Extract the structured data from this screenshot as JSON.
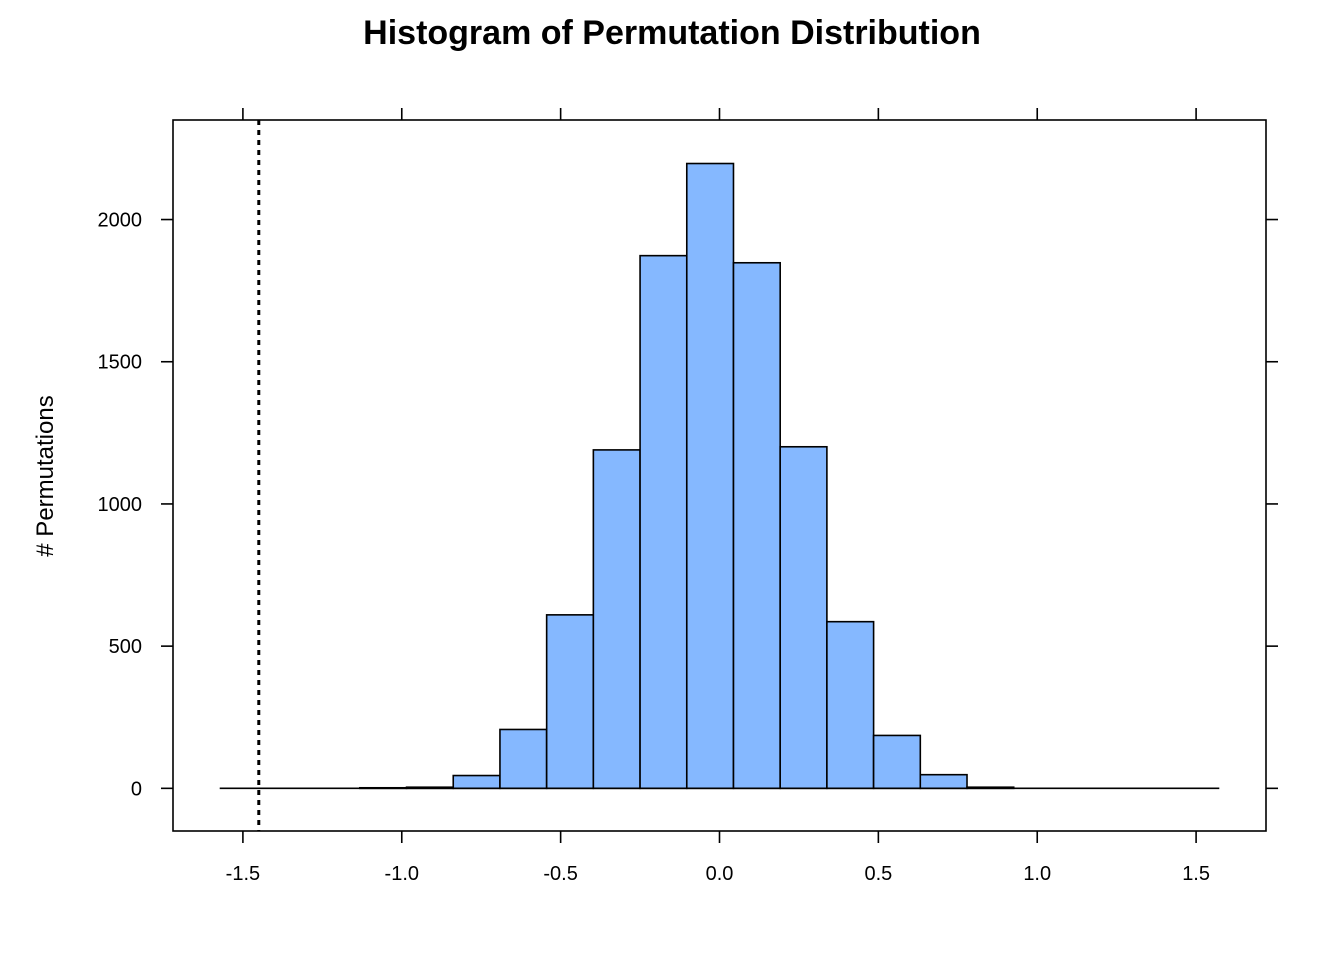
{
  "chart_data": {
    "type": "bar",
    "title": "Histogram of Permutation Distribution",
    "xlabel": "",
    "ylabel": "# Permutations",
    "xlim": [
      -1.72,
      1.72
    ],
    "ylim": [
      -150,
      2350
    ],
    "x_ticks": [
      -1.5,
      -1.0,
      -0.5,
      0.0,
      0.5,
      1.0,
      1.5
    ],
    "x_tick_labels": [
      "-1.5",
      "-1.0",
      "-0.5",
      "0.0",
      "0.5",
      "1.0",
      "1.5"
    ],
    "y_ticks": [
      0,
      500,
      1000,
      1500,
      2000
    ],
    "y_tick_labels": [
      "0",
      "500",
      "1000",
      "1500",
      "2000"
    ],
    "bin_edges": [
      -1.573,
      -1.426,
      -1.279,
      -1.132,
      -0.985,
      -0.838,
      -0.691,
      -0.544,
      -0.397,
      -0.25,
      -0.103,
      0.044,
      0.191,
      0.338,
      0.485,
      0.632,
      0.779,
      0.926,
      1.073,
      1.22,
      1.367,
      1.514
    ],
    "bins": [
      {
        "x0": -1.573,
        "x1": -1.426,
        "count": 0
      },
      {
        "x0": -1.426,
        "x1": -1.279,
        "count": 0
      },
      {
        "x0": -1.279,
        "x1": -1.132,
        "count": 0
      },
      {
        "x0": -1.132,
        "x1": -0.985,
        "count": 2
      },
      {
        "x0": -0.985,
        "x1": -0.838,
        "count": 4
      },
      {
        "x0": -0.838,
        "x1": -0.691,
        "count": 45
      },
      {
        "x0": -0.691,
        "x1": -0.544,
        "count": 207
      },
      {
        "x0": -0.544,
        "x1": -0.397,
        "count": 610
      },
      {
        "x0": -0.397,
        "x1": -0.25,
        "count": 1190
      },
      {
        "x0": -0.25,
        "x1": -0.103,
        "count": 1873
      },
      {
        "x0": -0.103,
        "x1": 0.044,
        "count": 2197
      },
      {
        "x0": 0.044,
        "x1": 0.191,
        "count": 1848
      },
      {
        "x0": 0.191,
        "x1": 0.338,
        "count": 1201
      },
      {
        "x0": 0.338,
        "x1": 0.485,
        "count": 586
      },
      {
        "x0": 0.485,
        "x1": 0.632,
        "count": 186
      },
      {
        "x0": 0.632,
        "x1": 0.779,
        "count": 48
      },
      {
        "x0": 0.779,
        "x1": 0.926,
        "count": 4
      },
      {
        "x0": 0.926,
        "x1": 1.073,
        "count": 0
      },
      {
        "x0": 1.073,
        "x1": 1.22,
        "count": 0
      },
      {
        "x0": 1.22,
        "x1": 1.367,
        "count": 0
      },
      {
        "x0": 1.367,
        "x1": 1.514,
        "count": 0
      }
    ],
    "observed_statistic": -1.45,
    "baseline_range": [
      -1.573,
      1.573
    ],
    "bar_fill": "#85b8ff",
    "bar_stroke": "#000000",
    "grid": false
  }
}
